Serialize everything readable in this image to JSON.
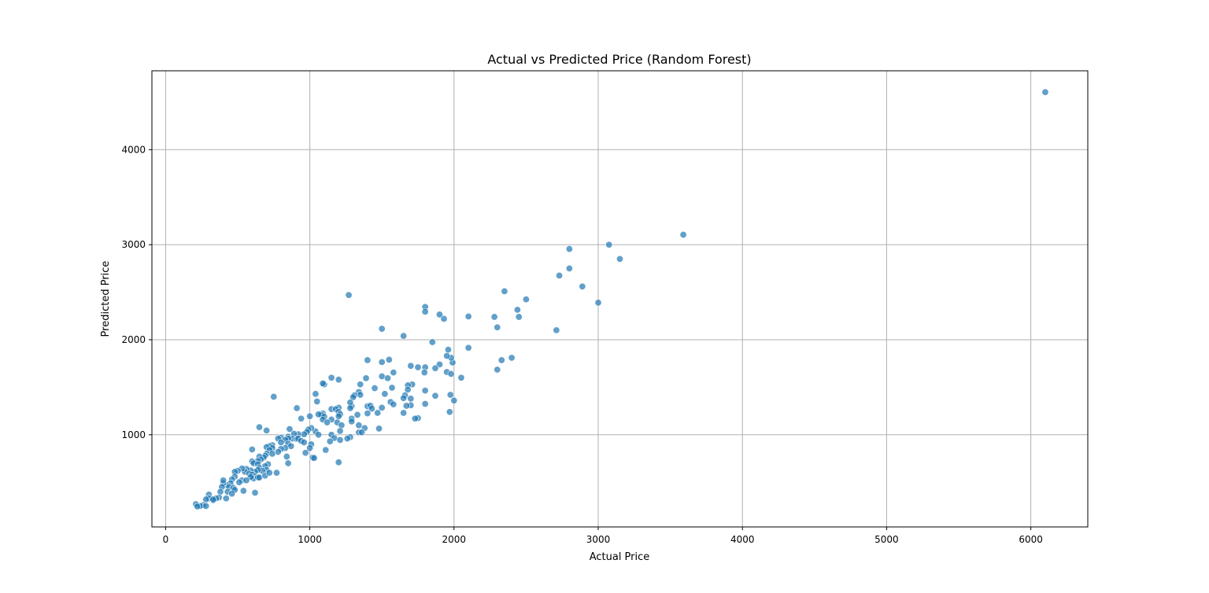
{
  "chart_data": {
    "type": "scatter",
    "title": "Actual vs Predicted Price (Random Forest)",
    "xlabel": "Actual Price",
    "ylabel": "Predicted Price",
    "xlim": [
      -95,
      6395
    ],
    "ylim": [
      30,
      4830
    ],
    "xticks": [
      0,
      1000,
      2000,
      3000,
      4000,
      5000,
      6000
    ],
    "yticks": [
      1000,
      2000,
      3000,
      4000
    ],
    "grid": true,
    "legend": "none",
    "marker_color": "#1f77b4",
    "marker_alpha": 0.7,
    "points": [
      [
        6100,
        4605
      ],
      [
        3590,
        3105
      ],
      [
        3075,
        3000
      ],
      [
        3150,
        2850
      ],
      [
        2800,
        2955
      ],
      [
        2800,
        2750
      ],
      [
        2730,
        2675
      ],
      [
        2890,
        2560
      ],
      [
        3000,
        2390
      ],
      [
        2710,
        2100
      ],
      [
        2500,
        2425
      ],
      [
        2440,
        2315
      ],
      [
        2450,
        2240
      ],
      [
        2350,
        2510
      ],
      [
        2280,
        2240
      ],
      [
        2300,
        2130
      ],
      [
        2400,
        1810
      ],
      [
        2330,
        1785
      ],
      [
        2300,
        1685
      ],
      [
        2100,
        2245
      ],
      [
        2100,
        1915
      ],
      [
        2050,
        1600
      ],
      [
        1990,
        1760
      ],
      [
        1980,
        1810
      ],
      [
        1960,
        1895
      ],
      [
        1950,
        1830
      ],
      [
        1950,
        1660
      ],
      [
        1980,
        1640
      ],
      [
        1930,
        2220
      ],
      [
        1900,
        2265
      ],
      [
        1900,
        1740
      ],
      [
        1870,
        1700
      ],
      [
        1850,
        1975
      ],
      [
        1800,
        2345
      ],
      [
        1800,
        2295
      ],
      [
        1800,
        1710
      ],
      [
        1795,
        1655
      ],
      [
        1800,
        1465
      ],
      [
        1870,
        1410
      ],
      [
        1800,
        1325
      ],
      [
        1975,
        1420
      ],
      [
        2000,
        1360
      ],
      [
        1970,
        1240
      ],
      [
        1750,
        1710
      ],
      [
        1700,
        1725
      ],
      [
        1650,
        2040
      ],
      [
        1710,
        1530
      ],
      [
        1680,
        1520
      ],
      [
        1680,
        1475
      ],
      [
        1660,
        1415
      ],
      [
        1650,
        1385
      ],
      [
        1700,
        1380
      ],
      [
        1700,
        1310
      ],
      [
        1670,
        1305
      ],
      [
        1650,
        1230
      ],
      [
        1750,
        1175
      ],
      [
        1730,
        1170
      ],
      [
        1580,
        1655
      ],
      [
        1550,
        1790
      ],
      [
        1500,
        1765
      ],
      [
        1500,
        2115
      ],
      [
        1500,
        1615
      ],
      [
        1540,
        1595
      ],
      [
        1570,
        1495
      ],
      [
        1520,
        1430
      ],
      [
        1560,
        1345
      ],
      [
        1580,
        1320
      ],
      [
        1500,
        1285
      ],
      [
        1470,
        1230
      ],
      [
        1480,
        1065
      ],
      [
        1450,
        1490
      ],
      [
        1400,
        1785
      ],
      [
        1390,
        1595
      ],
      [
        1350,
        1530
      ],
      [
        1340,
        1450
      ],
      [
        1350,
        1420
      ],
      [
        1310,
        1415
      ],
      [
        1300,
        1395
      ],
      [
        1400,
        1300
      ],
      [
        1420,
        1305
      ],
      [
        1430,
        1275
      ],
      [
        1400,
        1225
      ],
      [
        1330,
        1210
      ],
      [
        1290,
        1300
      ],
      [
        1280,
        1340
      ],
      [
        1280,
        1280
      ],
      [
        1290,
        1170
      ],
      [
        1290,
        1140
      ],
      [
        1340,
        1100
      ],
      [
        1380,
        1070
      ],
      [
        1340,
        1025
      ],
      [
        1360,
        1025
      ],
      [
        1280,
        975
      ],
      [
        1260,
        960
      ],
      [
        1270,
        2470
      ],
      [
        1200,
        1580
      ],
      [
        1150,
        1600
      ],
      [
        1100,
        1530
      ],
      [
        1090,
        1540
      ],
      [
        1040,
        1430
      ],
      [
        1050,
        1350
      ],
      [
        1150,
        1270
      ],
      [
        1200,
        1285
      ],
      [
        1180,
        1270
      ],
      [
        1200,
        1240
      ],
      [
        1210,
        1215
      ],
      [
        1200,
        1195
      ],
      [
        1090,
        1225
      ],
      [
        1080,
        1210
      ],
      [
        1060,
        1215
      ],
      [
        1100,
        1190
      ],
      [
        1090,
        1160
      ],
      [
        1150,
        1160
      ],
      [
        1120,
        1130
      ],
      [
        1190,
        1130
      ],
      [
        1220,
        1100
      ],
      [
        1210,
        1040
      ],
      [
        1040,
        1035
      ],
      [
        1060,
        1000
      ],
      [
        1150,
        1000
      ],
      [
        1170,
        965
      ],
      [
        1210,
        945
      ],
      [
        1140,
        930
      ],
      [
        1110,
        840
      ],
      [
        1020,
        760
      ],
      [
        1030,
        755
      ],
      [
        1200,
        710
      ],
      [
        910,
        1280
      ],
      [
        750,
        1400
      ],
      [
        650,
        1080
      ],
      [
        700,
        1045
      ],
      [
        940,
        1170
      ],
      [
        1000,
        1195
      ],
      [
        1010,
        1070
      ],
      [
        990,
        1055
      ],
      [
        980,
        1030
      ],
      [
        960,
        1005
      ],
      [
        920,
        1005
      ],
      [
        890,
        1010
      ],
      [
        860,
        1060
      ],
      [
        850,
        980
      ],
      [
        880,
        960
      ],
      [
        910,
        955
      ],
      [
        920,
        960
      ],
      [
        940,
        935
      ],
      [
        960,
        920
      ],
      [
        1010,
        900
      ],
      [
        1000,
        860
      ],
      [
        970,
        810
      ],
      [
        850,
        960
      ],
      [
        800,
        970
      ],
      [
        780,
        960
      ],
      [
        830,
        945
      ],
      [
        800,
        920
      ],
      [
        850,
        905
      ],
      [
        870,
        880
      ],
      [
        830,
        860
      ],
      [
        800,
        850
      ],
      [
        780,
        820
      ],
      [
        840,
        770
      ],
      [
        850,
        700
      ],
      [
        770,
        600
      ],
      [
        740,
        890
      ],
      [
        720,
        880
      ],
      [
        700,
        870
      ],
      [
        740,
        860
      ],
      [
        720,
        840
      ],
      [
        700,
        800
      ],
      [
        740,
        800
      ],
      [
        690,
        780
      ],
      [
        680,
        760
      ],
      [
        650,
        770
      ],
      [
        660,
        740
      ],
      [
        640,
        725
      ],
      [
        600,
        845
      ],
      [
        600,
        720
      ],
      [
        610,
        700
      ],
      [
        640,
        690
      ],
      [
        710,
        690
      ],
      [
        690,
        670
      ],
      [
        650,
        650
      ],
      [
        700,
        630
      ],
      [
        670,
        620
      ],
      [
        640,
        630
      ],
      [
        620,
        610
      ],
      [
        590,
        625
      ],
      [
        560,
        640
      ],
      [
        550,
        610
      ],
      [
        580,
        590
      ],
      [
        600,
        580
      ],
      [
        620,
        560
      ],
      [
        610,
        540
      ],
      [
        590,
        555
      ],
      [
        640,
        550
      ],
      [
        650,
        550
      ],
      [
        690,
        570
      ],
      [
        720,
        600
      ],
      [
        620,
        390
      ],
      [
        530,
        645
      ],
      [
        500,
        620
      ],
      [
        480,
        610
      ],
      [
        480,
        560
      ],
      [
        530,
        520
      ],
      [
        510,
        500
      ],
      [
        560,
        520
      ],
      [
        460,
        530
      ],
      [
        450,
        490
      ],
      [
        420,
        470
      ],
      [
        400,
        490
      ],
      [
        400,
        520
      ],
      [
        390,
        450
      ],
      [
        440,
        450
      ],
      [
        470,
        440
      ],
      [
        480,
        420
      ],
      [
        430,
        400
      ],
      [
        460,
        380
      ],
      [
        540,
        410
      ],
      [
        380,
        400
      ],
      [
        370,
        340
      ],
      [
        350,
        330
      ],
      [
        420,
        330
      ],
      [
        300,
        370
      ],
      [
        330,
        310
      ],
      [
        300,
        330
      ],
      [
        330,
        320
      ],
      [
        280,
        320
      ],
      [
        260,
        260
      ],
      [
        240,
        250
      ],
      [
        210,
        270
      ],
      [
        220,
        245
      ],
      [
        280,
        250
      ]
    ]
  }
}
